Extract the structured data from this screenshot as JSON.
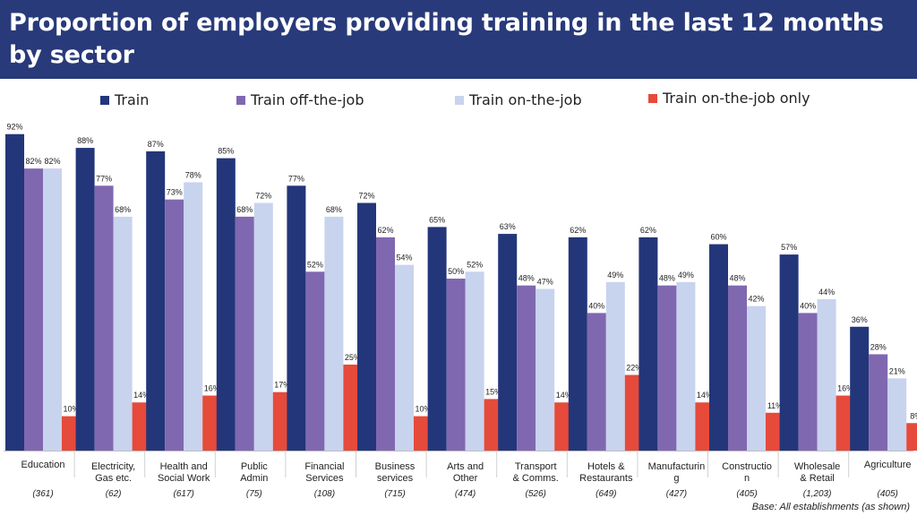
{
  "title": "Proportion of employers providing training in the last 12 months by sector",
  "colors": {
    "header_bg": "#283a7a",
    "train": "#23367a",
    "off_the_job": "#8068b0",
    "on_the_job": "#c8d3ee",
    "on_the_job_only": "#e64a3a"
  },
  "footnote": "Base: All establishments (as shown)",
  "chart_data": {
    "type": "bar",
    "ylim": [
      0,
      100
    ],
    "grid": false,
    "legend_position": "top",
    "categories": [
      "Education",
      "Electricity, Gas etc.",
      "Health and Social Work",
      "Public Admin",
      "Financial Services",
      "Business services",
      "Arts and Other",
      "Transport & Comms.",
      "Hotels & Restaurants",
      "Manufacturing",
      "Construction",
      "Wholesale & Retail",
      "Agriculture"
    ],
    "category_lines": [
      [
        "Education"
      ],
      [
        "Electricity,",
        "Gas etc."
      ],
      [
        "Health and",
        "Social Work"
      ],
      [
        "Public",
        "Admin"
      ],
      [
        "Financial",
        "Services"
      ],
      [
        "Business",
        "services"
      ],
      [
        "Arts and",
        "Other"
      ],
      [
        "Transport",
        "& Comms."
      ],
      [
        "Hotels &",
        "Restaurants"
      ],
      [
        "Manufacturin",
        "g"
      ],
      [
        "Constructio",
        "n"
      ],
      [
        "Wholesale",
        "& Retail"
      ],
      [
        "Agriculture"
      ]
    ],
    "bases": [
      "(361)",
      "(62)",
      "(617)",
      "(75)",
      "(108)",
      "(715)",
      "(474)",
      "(526)",
      "(649)",
      "(427)",
      "(405)",
      "(1,203)",
      "(405)"
    ],
    "series": [
      {
        "name": "Train",
        "color": "#23367a",
        "values": [
          92,
          88,
          87,
          85,
          77,
          72,
          65,
          63,
          62,
          62,
          60,
          57,
          36
        ]
      },
      {
        "name": "Train off-the-job",
        "color": "#8068b0",
        "values": [
          82,
          77,
          73,
          68,
          52,
          62,
          50,
          48,
          40,
          48,
          48,
          40,
          28
        ]
      },
      {
        "name": "Train on-the-job",
        "color": "#c8d3ee",
        "values": [
          82,
          68,
          78,
          72,
          68,
          54,
          52,
          47,
          49,
          49,
          42,
          44,
          21
        ]
      },
      {
        "name": "Train on-the-job only",
        "color": "#e64a3a",
        "values": [
          10,
          14,
          16,
          17,
          25,
          10,
          15,
          14,
          22,
          14,
          11,
          16,
          8
        ]
      }
    ]
  }
}
